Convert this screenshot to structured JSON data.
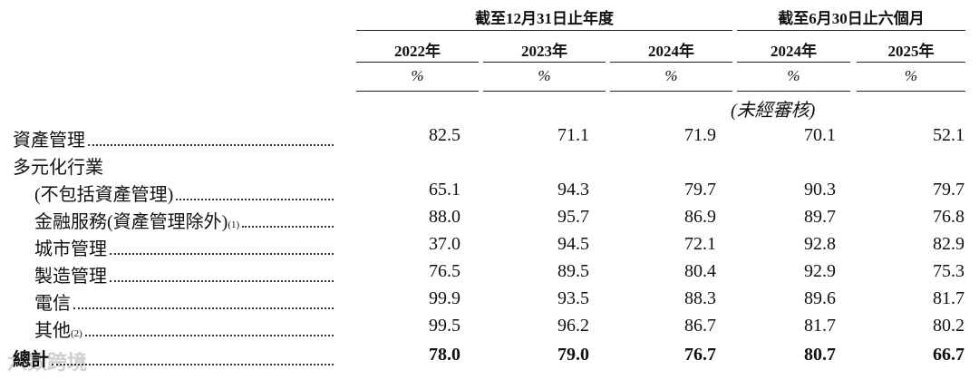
{
  "table": {
    "groups": [
      "截至12月31日止年度",
      "截至6月30日止六個月"
    ],
    "years": [
      "2022年",
      "2023年",
      "2024年",
      "2024年",
      "2025年"
    ],
    "units": [
      "%",
      "%",
      "%",
      "%",
      "%"
    ],
    "unaudited": "(未經審核)",
    "rows": [
      {
        "label": "資產管理",
        "values": [
          "82.5",
          "71.1",
          "71.9",
          "70.1",
          "52.1"
        ]
      },
      {
        "label": "多元化行業"
      },
      {
        "label": "(不包括資產管理)",
        "values": [
          "65.1",
          "94.3",
          "79.7",
          "90.3",
          "79.7"
        ]
      },
      {
        "label": "金融服務(資產管理除外)",
        "note": "(1)",
        "values": [
          "88.0",
          "95.7",
          "86.9",
          "89.7",
          "76.8"
        ]
      },
      {
        "label": "城市管理",
        "values": [
          "37.0",
          "94.5",
          "72.1",
          "92.8",
          "82.9"
        ]
      },
      {
        "label": "製造管理",
        "values": [
          "76.5",
          "89.5",
          "80.4",
          "92.9",
          "75.3"
        ]
      },
      {
        "label": "電信",
        "values": [
          "99.9",
          "93.5",
          "88.3",
          "89.6",
          "81.7"
        ]
      },
      {
        "label": "其他",
        "note": "(2)",
        "values": [
          "99.5",
          "96.2",
          "86.7",
          "81.7",
          "80.2"
        ]
      },
      {
        "label": "總計",
        "values": [
          "78.0",
          "79.0",
          "76.7",
          "80.7",
          "66.7"
        ]
      }
    ]
  },
  "watermark": "六数跨境"
}
